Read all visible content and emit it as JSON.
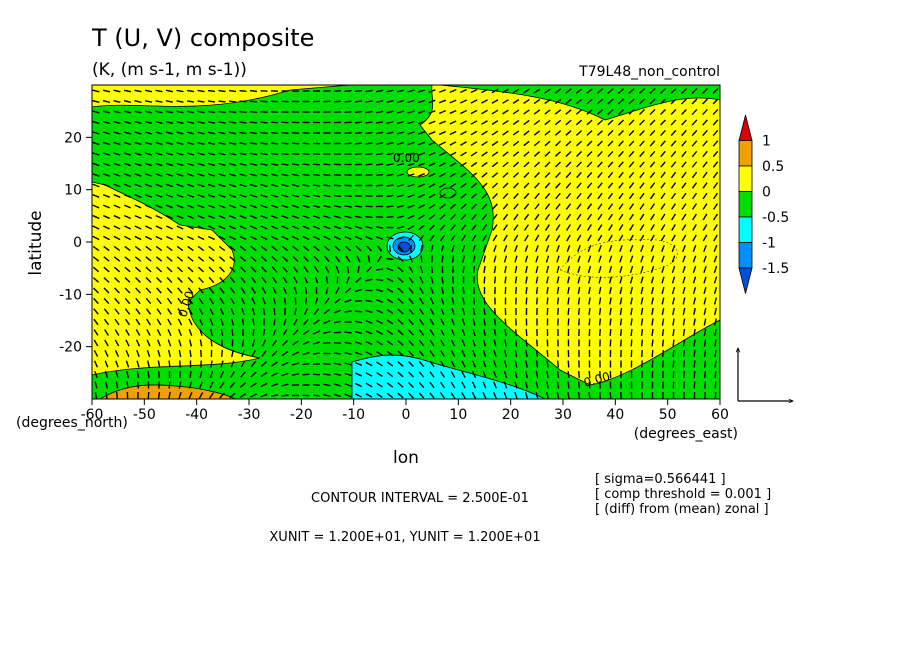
{
  "chart_data": {
    "type": "heatmap",
    "title": "T (U, V) composite",
    "subtitle": "(K, (m s-1, m s-1))",
    "run_label": "T79L48_non_control",
    "xlabel": "lon",
    "ylabel": "latitude",
    "x_unit_label": "(degrees_east)",
    "y_unit_label": "(degrees_north)",
    "xlim": [
      -60,
      60
    ],
    "ylim": [
      -30,
      30
    ],
    "x_ticks": [
      "-60",
      "-50",
      "-40",
      "-30",
      "-20",
      "-10",
      "0",
      "10",
      "20",
      "30",
      "40",
      "50",
      "60"
    ],
    "y_ticks": [
      "20",
      "10",
      "0",
      "-10",
      "-20"
    ],
    "x_tick_values": [
      -60,
      -50,
      -40,
      -30,
      -20,
      -10,
      0,
      10,
      20,
      30,
      40,
      50,
      60
    ],
    "y_tick_values": [
      20,
      10,
      0,
      -10,
      -20
    ],
    "colorbar": {
      "labels": [
        "1",
        "0.5",
        "0",
        "-0.5",
        "-1",
        "-1.5"
      ],
      "levels": [
        1.5,
        1,
        0.5,
        0,
        -0.5,
        -1,
        -1.5,
        -2
      ],
      "colors": [
        "#dd0000",
        "#f0a000",
        "#ffff00",
        "#00dd00",
        "#00ffff",
        "#0090ff",
        "#0050dd"
      ]
    },
    "contour_labels": [
      "0.00",
      "0.00",
      "0.00"
    ],
    "contour_interval": "CONTOUR INTERVAL = 2.500E-01",
    "vector_units": "XUNIT = 1.200E+01, YUNIT = 1.200E+01",
    "notes": [
      "[ sigma=0.566441 ]",
      "[ comp threshold = 0.001 ]",
      "[ (diff) from (mean) zonal ]"
    ],
    "grid": false,
    "vectors": true
  }
}
